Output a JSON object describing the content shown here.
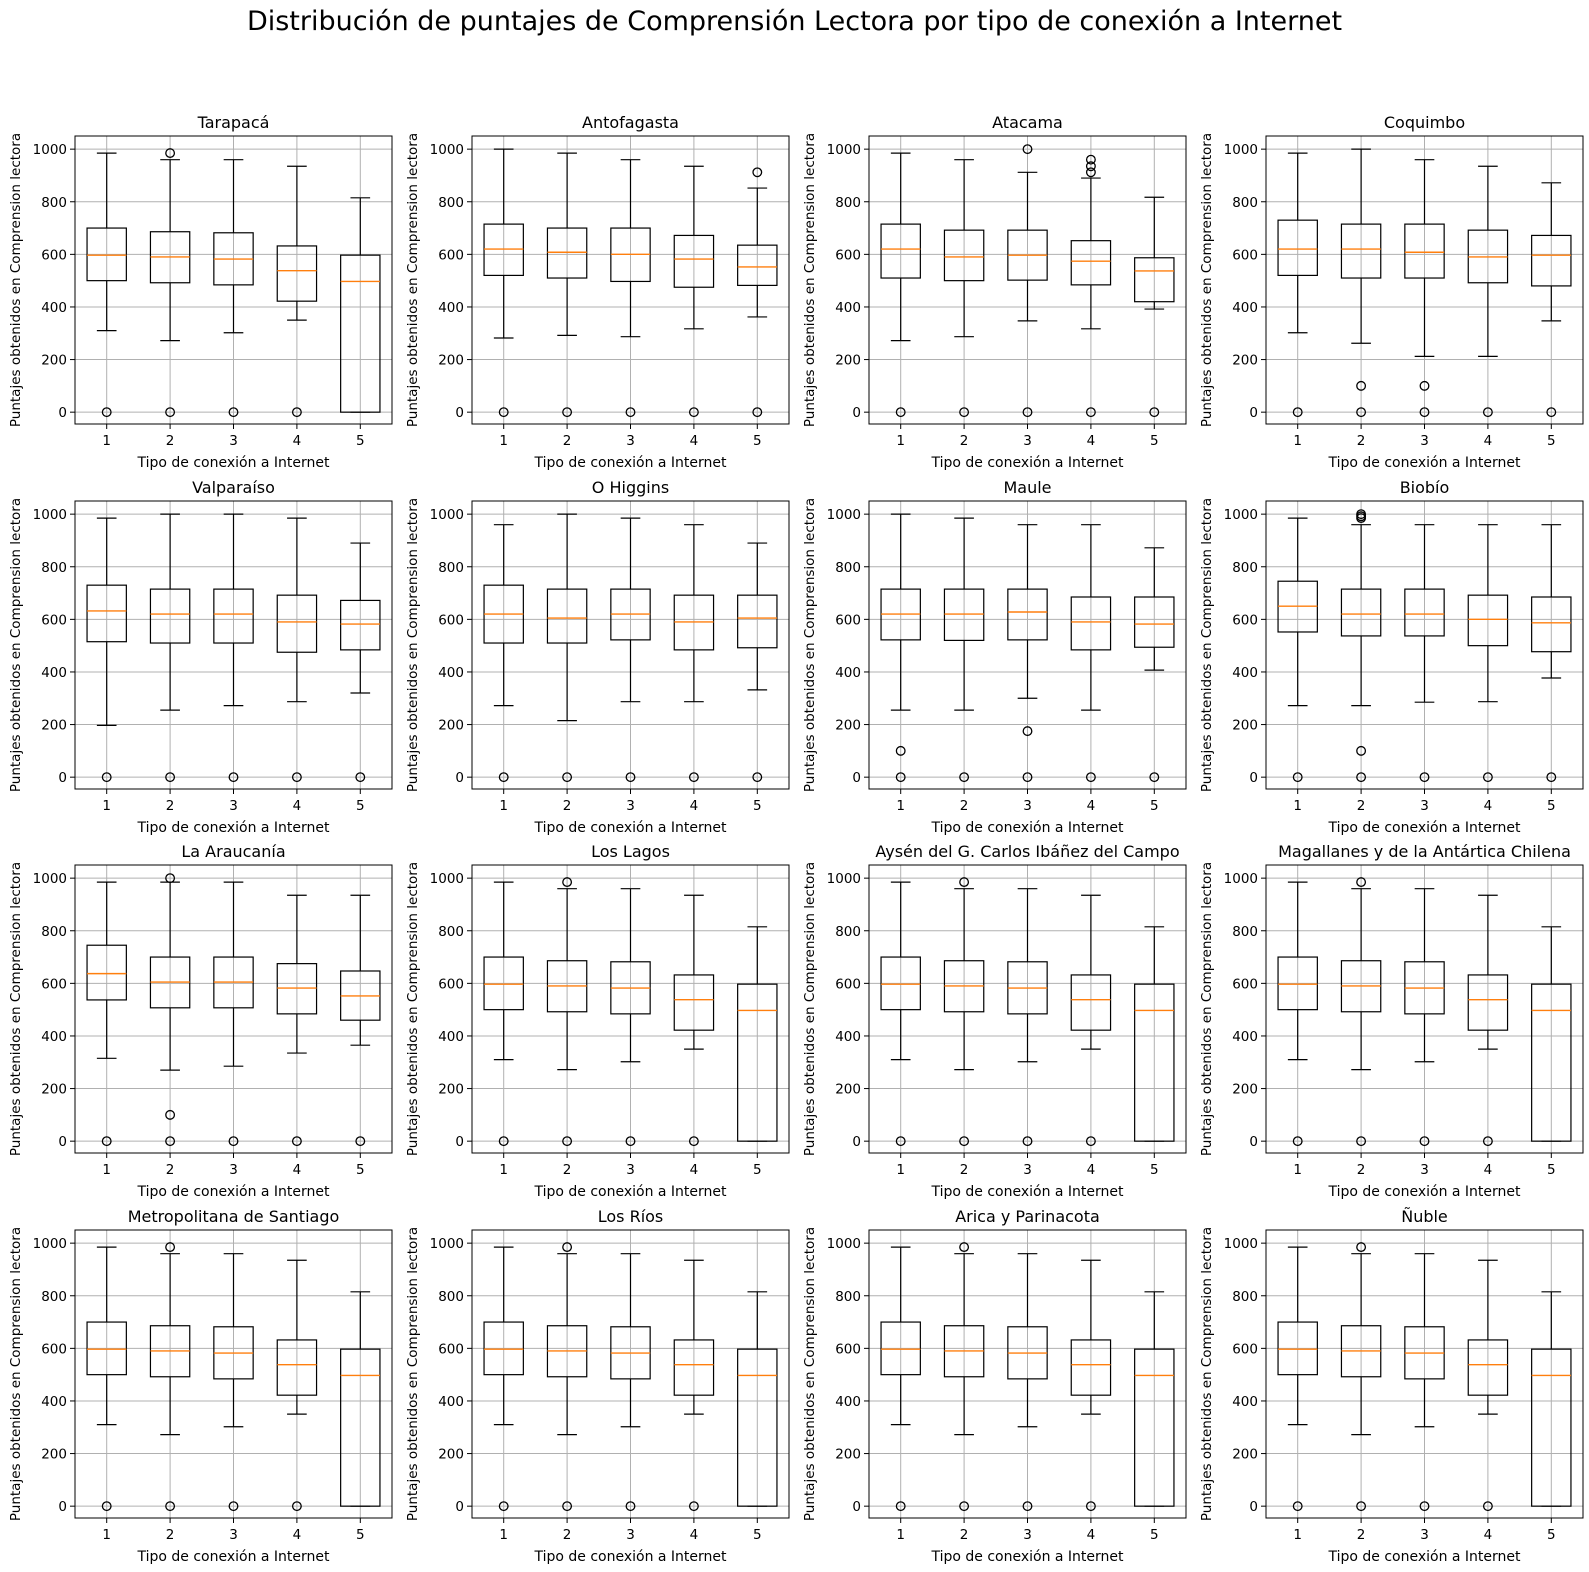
{
  "title": "Distribución de puntajes de Comprensión Lectora por tipo de conexión a Internet",
  "colors": {
    "box": "#000000",
    "median": "#ff7f0e",
    "grid": "#b0b0b0",
    "flier": "#000000"
  },
  "chart_data": {
    "type": "boxplot",
    "xlabel": "Tipo de conexión a Internet",
    "ylabel": "Puntajes obtenidos en Comprension lectora",
    "categories": [
      "1",
      "2",
      "3",
      "4",
      "5"
    ],
    "yticks": [
      0,
      200,
      400,
      600,
      800,
      1000
    ],
    "ylim": [
      -45,
      1050
    ],
    "grid": true,
    "panels": [
      {
        "title": "Tarapacá",
        "boxes": [
          {
            "whislo": 310,
            "q1": 500,
            "med": 597,
            "q3": 700,
            "whishi": 985,
            "fliers": [
              0
            ]
          },
          {
            "whislo": 272,
            "q1": 492,
            "med": 590,
            "q3": 686,
            "whishi": 960,
            "fliers": [
              0,
              985
            ]
          },
          {
            "whislo": 302,
            "q1": 484,
            "med": 582,
            "q3": 682,
            "whishi": 960,
            "fliers": [
              0
            ]
          },
          {
            "whislo": 350,
            "q1": 422,
            "med": 538,
            "q3": 632,
            "whishi": 935,
            "fliers": [
              0
            ]
          },
          {
            "whislo": 0,
            "q1": 0,
            "med": 497,
            "q3": 597,
            "whishi": 815,
            "fliers": []
          }
        ]
      },
      {
        "title": "Antofagasta",
        "boxes": [
          {
            "whislo": 282,
            "q1": 520,
            "med": 620,
            "q3": 715,
            "whishi": 1000,
            "fliers": [
              0
            ]
          },
          {
            "whislo": 292,
            "q1": 510,
            "med": 608,
            "q3": 700,
            "whishi": 985,
            "fliers": [
              0
            ]
          },
          {
            "whislo": 287,
            "q1": 497,
            "med": 600,
            "q3": 700,
            "whishi": 960,
            "fliers": [
              0
            ]
          },
          {
            "whislo": 317,
            "q1": 475,
            "med": 582,
            "q3": 672,
            "whishi": 935,
            "fliers": [
              0
            ]
          },
          {
            "whislo": 362,
            "q1": 482,
            "med": 552,
            "q3": 635,
            "whishi": 852,
            "fliers": [
              0,
              912
            ]
          }
        ]
      },
      {
        "title": "Atacama",
        "boxes": [
          {
            "whislo": 272,
            "q1": 510,
            "med": 620,
            "q3": 715,
            "whishi": 985,
            "fliers": [
              0
            ]
          },
          {
            "whislo": 287,
            "q1": 500,
            "med": 590,
            "q3": 692,
            "whishi": 960,
            "fliers": [
              0
            ]
          },
          {
            "whislo": 347,
            "q1": 502,
            "med": 597,
            "q3": 692,
            "whishi": 912,
            "fliers": [
              0,
              1000
            ]
          },
          {
            "whislo": 317,
            "q1": 484,
            "med": 574,
            "q3": 652,
            "whishi": 890,
            "fliers": [
              0,
              912,
              935,
              960
            ]
          },
          {
            "whislo": 392,
            "q1": 420,
            "med": 537,
            "q3": 587,
            "whishi": 817,
            "fliers": [
              0
            ]
          }
        ]
      },
      {
        "title": "Coquimbo",
        "boxes": [
          {
            "whislo": 302,
            "q1": 520,
            "med": 620,
            "q3": 730,
            "whishi": 985,
            "fliers": [
              0
            ]
          },
          {
            "whislo": 262,
            "q1": 510,
            "med": 620,
            "q3": 715,
            "whishi": 1000,
            "fliers": [
              0,
              100
            ]
          },
          {
            "whislo": 212,
            "q1": 510,
            "med": 608,
            "q3": 715,
            "whishi": 960,
            "fliers": [
              0,
              100
            ]
          },
          {
            "whislo": 212,
            "q1": 492,
            "med": 590,
            "q3": 692,
            "whishi": 935,
            "fliers": [
              0
            ]
          },
          {
            "whislo": 347,
            "q1": 480,
            "med": 597,
            "q3": 672,
            "whishi": 872,
            "fliers": [
              0
            ]
          }
        ]
      },
      {
        "title": "Valparaíso",
        "boxes": [
          {
            "whislo": 197,
            "q1": 515,
            "med": 632,
            "q3": 730,
            "whishi": 985,
            "fliers": [
              0
            ]
          },
          {
            "whislo": 255,
            "q1": 510,
            "med": 620,
            "q3": 715,
            "whishi": 1000,
            "fliers": [
              0
            ]
          },
          {
            "whislo": 272,
            "q1": 510,
            "med": 620,
            "q3": 715,
            "whishi": 1000,
            "fliers": [
              0
            ]
          },
          {
            "whislo": 287,
            "q1": 475,
            "med": 590,
            "q3": 692,
            "whishi": 985,
            "fliers": [
              0
            ]
          },
          {
            "whislo": 320,
            "q1": 484,
            "med": 582,
            "q3": 672,
            "whishi": 890,
            "fliers": [
              0
            ]
          }
        ]
      },
      {
        "title": "O Higgins",
        "boxes": [
          {
            "whislo": 272,
            "q1": 510,
            "med": 620,
            "q3": 730,
            "whishi": 960,
            "fliers": [
              0
            ]
          },
          {
            "whislo": 215,
            "q1": 510,
            "med": 605,
            "q3": 715,
            "whishi": 1000,
            "fliers": [
              0
            ]
          },
          {
            "whislo": 287,
            "q1": 522,
            "med": 620,
            "q3": 715,
            "whishi": 985,
            "fliers": [
              0
            ]
          },
          {
            "whislo": 287,
            "q1": 484,
            "med": 590,
            "q3": 692,
            "whishi": 960,
            "fliers": [
              0
            ]
          },
          {
            "whislo": 332,
            "q1": 492,
            "med": 605,
            "q3": 692,
            "whishi": 890,
            "fliers": [
              0
            ]
          }
        ]
      },
      {
        "title": "Maule",
        "boxes": [
          {
            "whislo": 255,
            "q1": 522,
            "med": 620,
            "q3": 715,
            "whishi": 1000,
            "fliers": [
              0,
              100
            ]
          },
          {
            "whislo": 255,
            "q1": 520,
            "med": 620,
            "q3": 715,
            "whishi": 985,
            "fliers": [
              0
            ]
          },
          {
            "whislo": 300,
            "q1": 522,
            "med": 628,
            "q3": 715,
            "whishi": 960,
            "fliers": [
              0,
              175
            ]
          },
          {
            "whislo": 255,
            "q1": 484,
            "med": 590,
            "q3": 685,
            "whishi": 960,
            "fliers": [
              0
            ]
          },
          {
            "whislo": 407,
            "q1": 494,
            "med": 582,
            "q3": 685,
            "whishi": 872,
            "fliers": [
              0
            ]
          }
        ]
      },
      {
        "title": "Biobío",
        "boxes": [
          {
            "whislo": 272,
            "q1": 552,
            "med": 650,
            "q3": 745,
            "whishi": 985,
            "fliers": [
              0
            ]
          },
          {
            "whislo": 272,
            "q1": 537,
            "med": 620,
            "q3": 715,
            "whishi": 960,
            "fliers": [
              0,
              100,
              985,
              992,
              1000
            ]
          },
          {
            "whislo": 285,
            "q1": 537,
            "med": 620,
            "q3": 715,
            "whishi": 960,
            "fliers": [
              0
            ]
          },
          {
            "whislo": 287,
            "q1": 500,
            "med": 600,
            "q3": 692,
            "whishi": 960,
            "fliers": [
              0
            ]
          },
          {
            "whislo": 377,
            "q1": 477,
            "med": 587,
            "q3": 685,
            "whishi": 960,
            "fliers": [
              0
            ]
          }
        ]
      },
      {
        "title": "La Araucanía",
        "boxes": [
          {
            "whislo": 315,
            "q1": 537,
            "med": 637,
            "q3": 745,
            "whishi": 985,
            "fliers": [
              0
            ]
          },
          {
            "whislo": 270,
            "q1": 507,
            "med": 605,
            "q3": 700,
            "whishi": 985,
            "fliers": [
              0,
              100,
              1000
            ]
          },
          {
            "whislo": 285,
            "q1": 507,
            "med": 605,
            "q3": 700,
            "whishi": 985,
            "fliers": [
              0
            ]
          },
          {
            "whislo": 335,
            "q1": 484,
            "med": 582,
            "q3": 675,
            "whishi": 935,
            "fliers": [
              0
            ]
          },
          {
            "whislo": 365,
            "q1": 460,
            "med": 552,
            "q3": 647,
            "whishi": 935,
            "fliers": [
              0
            ]
          }
        ]
      },
      {
        "title": "Los Lagos",
        "boxes": [
          {
            "whislo": 310,
            "q1": 500,
            "med": 597,
            "q3": 700,
            "whishi": 985,
            "fliers": [
              0
            ]
          },
          {
            "whislo": 272,
            "q1": 492,
            "med": 590,
            "q3": 686,
            "whishi": 960,
            "fliers": [
              0,
              985
            ]
          },
          {
            "whislo": 302,
            "q1": 484,
            "med": 582,
            "q3": 682,
            "whishi": 960,
            "fliers": [
              0
            ]
          },
          {
            "whislo": 350,
            "q1": 422,
            "med": 538,
            "q3": 632,
            "whishi": 935,
            "fliers": [
              0
            ]
          },
          {
            "whislo": 0,
            "q1": 0,
            "med": 497,
            "q3": 597,
            "whishi": 815,
            "fliers": []
          }
        ]
      },
      {
        "title": "Aysén del G. Carlos Ibáñez del Campo",
        "boxes": [
          {
            "whislo": 310,
            "q1": 500,
            "med": 597,
            "q3": 700,
            "whishi": 985,
            "fliers": [
              0
            ]
          },
          {
            "whislo": 272,
            "q1": 492,
            "med": 590,
            "q3": 686,
            "whishi": 960,
            "fliers": [
              0,
              985
            ]
          },
          {
            "whislo": 302,
            "q1": 484,
            "med": 582,
            "q3": 682,
            "whishi": 960,
            "fliers": [
              0
            ]
          },
          {
            "whislo": 350,
            "q1": 422,
            "med": 538,
            "q3": 632,
            "whishi": 935,
            "fliers": [
              0
            ]
          },
          {
            "whislo": 0,
            "q1": 0,
            "med": 497,
            "q3": 597,
            "whishi": 815,
            "fliers": []
          }
        ]
      },
      {
        "title": "Magallanes y de la Antártica Chilena",
        "boxes": [
          {
            "whislo": 310,
            "q1": 500,
            "med": 597,
            "q3": 700,
            "whishi": 985,
            "fliers": [
              0
            ]
          },
          {
            "whislo": 272,
            "q1": 492,
            "med": 590,
            "q3": 686,
            "whishi": 960,
            "fliers": [
              0,
              985
            ]
          },
          {
            "whislo": 302,
            "q1": 484,
            "med": 582,
            "q3": 682,
            "whishi": 960,
            "fliers": [
              0
            ]
          },
          {
            "whislo": 350,
            "q1": 422,
            "med": 538,
            "q3": 632,
            "whishi": 935,
            "fliers": [
              0
            ]
          },
          {
            "whislo": 0,
            "q1": 0,
            "med": 497,
            "q3": 597,
            "whishi": 815,
            "fliers": []
          }
        ]
      },
      {
        "title": "Metropolitana de Santiago",
        "boxes": [
          {
            "whislo": 310,
            "q1": 500,
            "med": 597,
            "q3": 700,
            "whishi": 985,
            "fliers": [
              0
            ]
          },
          {
            "whislo": 272,
            "q1": 492,
            "med": 590,
            "q3": 686,
            "whishi": 960,
            "fliers": [
              0,
              985
            ]
          },
          {
            "whislo": 302,
            "q1": 484,
            "med": 582,
            "q3": 682,
            "whishi": 960,
            "fliers": [
              0
            ]
          },
          {
            "whislo": 350,
            "q1": 422,
            "med": 538,
            "q3": 632,
            "whishi": 935,
            "fliers": [
              0
            ]
          },
          {
            "whislo": 0,
            "q1": 0,
            "med": 497,
            "q3": 597,
            "whishi": 815,
            "fliers": []
          }
        ]
      },
      {
        "title": "Los Ríos",
        "boxes": [
          {
            "whislo": 310,
            "q1": 500,
            "med": 597,
            "q3": 700,
            "whishi": 985,
            "fliers": [
              0
            ]
          },
          {
            "whislo": 272,
            "q1": 492,
            "med": 590,
            "q3": 686,
            "whishi": 960,
            "fliers": [
              0,
              985
            ]
          },
          {
            "whislo": 302,
            "q1": 484,
            "med": 582,
            "q3": 682,
            "whishi": 960,
            "fliers": [
              0
            ]
          },
          {
            "whislo": 350,
            "q1": 422,
            "med": 538,
            "q3": 632,
            "whishi": 935,
            "fliers": [
              0
            ]
          },
          {
            "whislo": 0,
            "q1": 0,
            "med": 497,
            "q3": 597,
            "whishi": 815,
            "fliers": []
          }
        ]
      },
      {
        "title": "Arica y Parinacota",
        "boxes": [
          {
            "whislo": 310,
            "q1": 500,
            "med": 597,
            "q3": 700,
            "whishi": 985,
            "fliers": [
              0
            ]
          },
          {
            "whislo": 272,
            "q1": 492,
            "med": 590,
            "q3": 686,
            "whishi": 960,
            "fliers": [
              0,
              985
            ]
          },
          {
            "whislo": 302,
            "q1": 484,
            "med": 582,
            "q3": 682,
            "whishi": 960,
            "fliers": [
              0
            ]
          },
          {
            "whislo": 350,
            "q1": 422,
            "med": 538,
            "q3": 632,
            "whishi": 935,
            "fliers": [
              0
            ]
          },
          {
            "whislo": 0,
            "q1": 0,
            "med": 497,
            "q3": 597,
            "whishi": 815,
            "fliers": []
          }
        ]
      },
      {
        "title": "Ñuble",
        "boxes": [
          {
            "whislo": 310,
            "q1": 500,
            "med": 597,
            "q3": 700,
            "whishi": 985,
            "fliers": [
              0
            ]
          },
          {
            "whislo": 272,
            "q1": 492,
            "med": 590,
            "q3": 686,
            "whishi": 960,
            "fliers": [
              0,
              985
            ]
          },
          {
            "whislo": 302,
            "q1": 484,
            "med": 582,
            "q3": 682,
            "whishi": 960,
            "fliers": [
              0
            ]
          },
          {
            "whislo": 350,
            "q1": 422,
            "med": 538,
            "q3": 632,
            "whishi": 935,
            "fliers": [
              0
            ]
          },
          {
            "whislo": 0,
            "q1": 0,
            "med": 497,
            "q3": 597,
            "whishi": 815,
            "fliers": []
          }
        ]
      }
    ]
  }
}
